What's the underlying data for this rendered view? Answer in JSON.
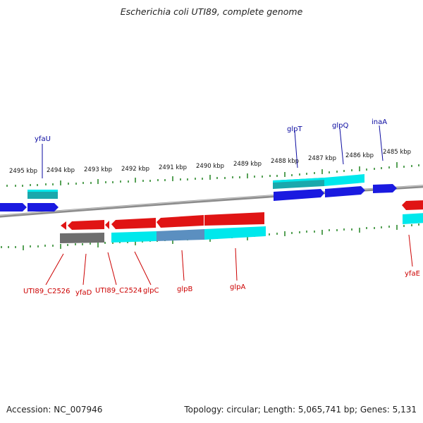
{
  "title": "Escherichia coli UTI89, complete genome",
  "footer": {
    "accession": "Accession: NC_007946",
    "summary": "Topology: circular; Length: 5,065,741 bp; Genes: 5,131"
  },
  "colors": {
    "backbone": "#8c8c8c",
    "forward_gene": "#1a1ae0",
    "reverse_gene": "#e01414",
    "forward_label": "#0a0aa0",
    "reverse_label": "#cc0000",
    "cds_cyan": "#00e8ec",
    "cds_teal": "#1aa8ac",
    "pseudo_gray": "#6e6e6e",
    "tick": "#2e8b2e"
  },
  "scale_labels": [
    "2495 kbp",
    "2494 kbp",
    "2493 kbp",
    "2492 kbp",
    "2491 kbp",
    "2490 kbp",
    "2489 kbp",
    "2488 kbp",
    "2487 kbp",
    "2486 kbp",
    "2485 kbp"
  ],
  "genes_forward": [
    "yfaU",
    "glpT",
    "glpQ",
    "inaA"
  ],
  "genes_reverse": [
    "UTI89_C2526",
    "yfaD",
    "UTI89_C2524",
    "glpC",
    "glpB",
    "glpA",
    "yfaE"
  ]
}
